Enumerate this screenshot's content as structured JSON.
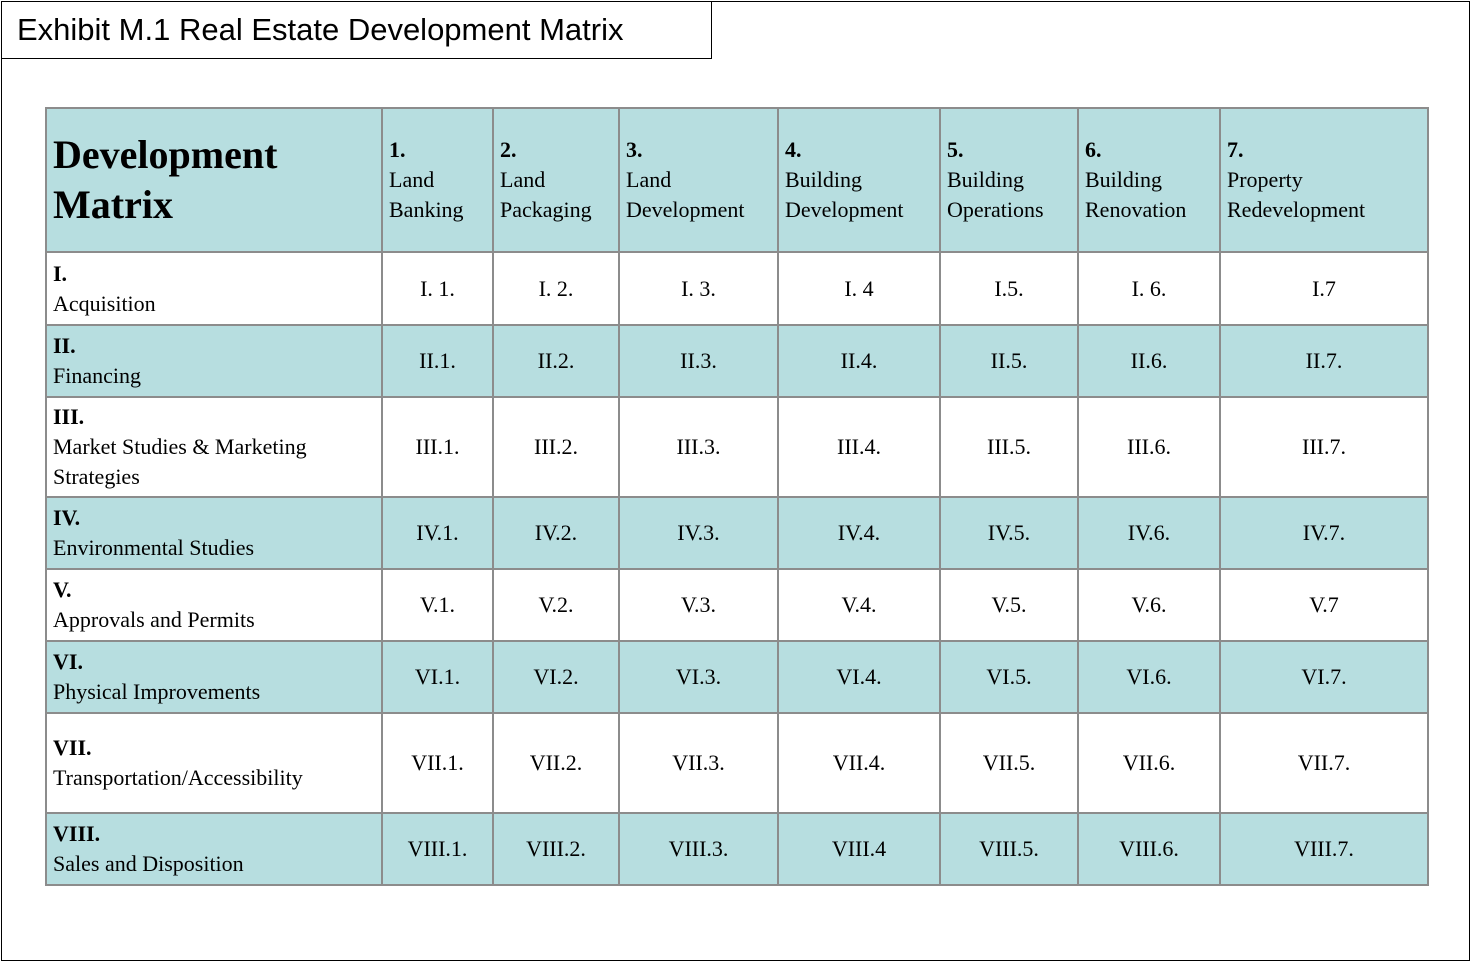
{
  "header": {
    "title": "Exhibit M.1 Real Estate Development Matrix"
  },
  "table": {
    "corner": "Development Matrix",
    "columns": [
      {
        "number": "1.",
        "label": "Land Banking"
      },
      {
        "number": "2.",
        "label": "Land Packaging"
      },
      {
        "number": "3.",
        "label": "Land Development"
      },
      {
        "number": "4.",
        "label": "Building Development"
      },
      {
        "number": "5.",
        "label": "Building Operations"
      },
      {
        "number": "6.",
        "label": "Building Renovation"
      },
      {
        "number": "7.",
        "label": "Property Redevelopment"
      }
    ],
    "rows": [
      {
        "number": "I.",
        "label": "Acquisition",
        "cells": [
          "I. 1.",
          "I. 2.",
          "I. 3.",
          "I. 4",
          "I.5.",
          "I. 6.",
          "I.7"
        ]
      },
      {
        "number": "II.",
        "label": "Financing",
        "cells": [
          "II.1.",
          "II.2.",
          "II.3.",
          "II.4.",
          "II.5.",
          "II.6.",
          "II.7."
        ]
      },
      {
        "number": "III.",
        "label": "Market Studies & Marketing Strategies",
        "cells": [
          "III.1.",
          "III.2.",
          "III.3.",
          "III.4.",
          "III.5.",
          "III.6.",
          "III.7."
        ]
      },
      {
        "number": "IV.",
        "label": "Environmental Studies",
        "cells": [
          "IV.1.",
          "IV.2.",
          "IV.3.",
          "IV.4.",
          "IV.5.",
          "IV.6.",
          "IV.7."
        ]
      },
      {
        "number": "V.",
        "label": "Approvals and Permits",
        "cells": [
          "V.1.",
          "V.2.",
          "V.3.",
          "V.4.",
          "V.5.",
          "V.6.",
          "V.7"
        ]
      },
      {
        "number": "VI.",
        "label": "Physical Improvements",
        "cells": [
          "VI.1.",
          "VI.2.",
          "VI.3.",
          "VI.4.",
          "VI.5.",
          "VI.6.",
          "VI.7."
        ]
      },
      {
        "number": "VII.",
        "label": "Transportation/Accessibility",
        "cells": [
          "VII.1.",
          "VII.2.",
          "VII.3.",
          "VII.4.",
          "VII.5.",
          "VII.6.",
          "VII.7."
        ]
      },
      {
        "number": "VIII.",
        "label": "Sales and Disposition",
        "cells": [
          "VIII.1.",
          "VIII.2.",
          "VIII.3.",
          "VIII.4",
          "VIII.5.",
          "VIII.6.",
          "VIII.7."
        ]
      }
    ]
  }
}
